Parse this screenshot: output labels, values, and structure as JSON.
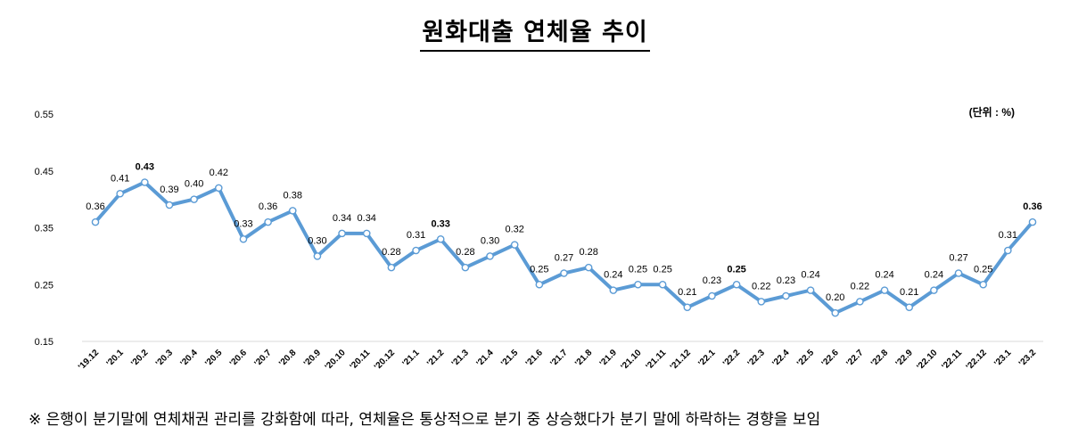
{
  "title": "원화대출 연체율 추이",
  "note": "※ 은행이 분기말에 연체채권 관리를 강화함에 따라, 연체율은 통상적으로 분기 중 상승했다가 분기 말에 하락하는 경향을 보임",
  "chart_data": {
    "type": "line",
    "unit_label": "(단위 : %)",
    "x": [
      "'19.12",
      "'20.1",
      "'20.2",
      "'20.3",
      "'20.4",
      "'20.5",
      "'20.6",
      "'20.7",
      "'20.8",
      "'20.9",
      "'20.10",
      "'20.11",
      "'20.12",
      "'21.1",
      "'21.2",
      "'21.3",
      "'21.4",
      "'21.5",
      "'21.6",
      "'21.7",
      "'21.8",
      "'21.9",
      "'21.10",
      "'21.11",
      "'21.12",
      "'22.1",
      "'22.2",
      "'22.3",
      "'22.4",
      "'22.5",
      "'22.6",
      "'22.7",
      "'22.8",
      "'22.9",
      "'22.10",
      "'22.11",
      "'22.12",
      "'23.1",
      "'23.2"
    ],
    "series": [
      {
        "values": [
          0.36,
          0.41,
          0.43,
          0.39,
          0.4,
          0.42,
          0.33,
          0.36,
          0.38,
          0.3,
          0.34,
          0.34,
          0.28,
          0.31,
          0.33,
          0.28,
          0.3,
          0.32,
          0.25,
          0.27,
          0.28,
          0.24,
          0.25,
          0.25,
          0.21,
          0.23,
          0.25,
          0.22,
          0.23,
          0.24,
          0.2,
          0.22,
          0.24,
          0.21,
          0.24,
          0.27,
          0.25,
          0.31,
          0.36
        ]
      }
    ],
    "data_labels": [
      "0.36",
      "0.41",
      "0.43",
      "0.39",
      "0.40",
      "0.42",
      "0.33",
      "0.36",
      "0.38",
      "0.30",
      "0.34",
      "0.34",
      "0.28",
      "0.31",
      "0.33",
      "0.28",
      "0.30",
      "0.32",
      "0.25",
      "0.27",
      "0.28",
      "0.24",
      "0.25",
      "0.25",
      "0.21",
      "0.23",
      "0.25",
      "0.22",
      "0.23",
      "0.24",
      "0.20",
      "0.22",
      "0.24",
      "0.21",
      "0.24",
      "0.27",
      "0.25",
      "0.31",
      "0.36"
    ],
    "bold_labels": [
      2,
      14,
      26,
      38
    ],
    "y_ticks": [
      "0.55",
      "0.45",
      "0.35",
      "0.25",
      "0.15"
    ],
    "ylim": [
      0.15,
      0.55
    ],
    "line_color": "#5b9bd5",
    "grid": false
  }
}
